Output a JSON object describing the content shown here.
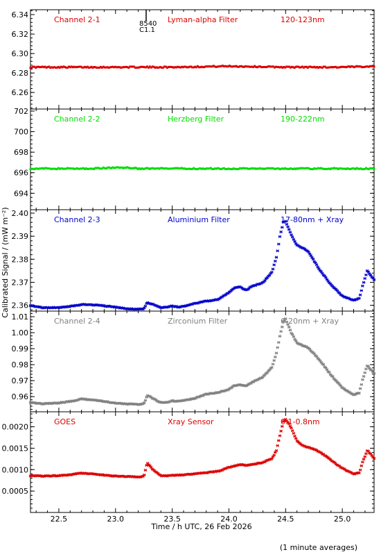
{
  "figure": {
    "ylabel": "Calibrated Signal / (mW m⁻²)",
    "xlabel": "Time / h UTC, 26 Feb 2026",
    "footnote": "(1 minute averages)",
    "annotation": {
      "x": 23.27,
      "lines": [
        "8540",
        "C1.1"
      ]
    },
    "xlim": [
      22.25,
      25.28
    ],
    "xticks": [
      "22.5",
      "23.0",
      "23.5",
      "24.0",
      "24.5",
      "25.0"
    ],
    "colors": {
      "channel_2_1": "#dd0000",
      "channel_2_2": "#00dd00",
      "channel_2_3": "#0000cc",
      "channel_2_4": "#808080",
      "goes": "#dd0000"
    }
  },
  "chart_data": [
    {
      "type": "scatter",
      "labels": [
        "Channel 2-1",
        "Lyman-alpha Filter",
        "120-123nm"
      ],
      "ylim": [
        6.243,
        6.345
      ],
      "yticks": [
        "6.26",
        "6.28",
        "6.30",
        "6.32",
        "6.34"
      ],
      "series": [
        {
          "color": "#dd0000",
          "x": [
            22.25,
            23.0,
            23.5,
            24.0,
            24.5,
            25.0,
            25.28
          ],
          "y": [
            6.286,
            6.286,
            6.286,
            6.287,
            6.286,
            6.286,
            6.287
          ]
        }
      ]
    },
    {
      "type": "scatter",
      "labels": [
        "Channel 2-2",
        "Herzberg Filter",
        "190-222nm"
      ],
      "ylim": [
        692.4,
        702.2
      ],
      "yticks": [
        "694",
        "696",
        "698",
        "700",
        "702"
      ],
      "series": [
        {
          "color": "#00dd00",
          "x": [
            22.25,
            22.8,
            23.0,
            23.1,
            23.2,
            23.5,
            24.0,
            24.5,
            25.0,
            25.28
          ],
          "y": [
            696.4,
            696.4,
            696.5,
            696.5,
            696.4,
            696.4,
            696.4,
            696.4,
            696.4,
            696.4
          ]
        }
      ]
    },
    {
      "type": "scatter",
      "labels": [
        "Channel 2-3",
        "Aluminium Filter",
        "17-80nm + Xray"
      ],
      "ylim": [
        2.3575,
        2.4015
      ],
      "yticks": [
        "2.36",
        "2.37",
        "2.38",
        "2.39",
        "2.40"
      ],
      "series": [
        {
          "color": "#0000cc",
          "x": [
            22.25,
            22.35,
            22.5,
            22.6,
            22.7,
            22.8,
            22.9,
            23.0,
            23.1,
            23.2,
            23.25,
            23.28,
            23.33,
            23.4,
            23.45,
            23.5,
            23.55,
            23.6,
            23.7,
            23.8,
            23.9,
            24.0,
            24.05,
            24.1,
            24.15,
            24.2,
            24.3,
            24.38,
            24.42,
            24.45,
            24.48,
            24.5,
            24.55,
            24.6,
            24.65,
            24.7,
            24.8,
            24.9,
            25.0,
            25.1,
            25.15,
            25.18,
            25.22,
            25.28
          ],
          "y": [
            2.36,
            2.359,
            2.359,
            2.3595,
            2.3603,
            2.3602,
            2.3598,
            2.3592,
            2.3585,
            2.3583,
            2.3585,
            2.3612,
            2.3605,
            2.359,
            2.3592,
            2.3598,
            2.3593,
            2.3595,
            2.3608,
            2.3618,
            2.3625,
            2.3655,
            2.3675,
            2.368,
            2.3665,
            2.3682,
            2.3698,
            2.3745,
            2.381,
            2.39,
            2.396,
            2.3965,
            2.3905,
            2.386,
            2.385,
            2.3832,
            2.3755,
            2.369,
            2.364,
            2.3622,
            2.363,
            2.3685,
            2.3752,
            2.371
          ]
        }
      ]
    },
    {
      "type": "scatter",
      "labels": [
        "Channel 2-4",
        "Zirconium Filter",
        "6-20nm + Xray"
      ],
      "ylim": [
        0.9505,
        1.0135
      ],
      "yticks": [
        "0.96",
        "0.97",
        "0.98",
        "0.99",
        "1.00",
        "1.01"
      ],
      "series": [
        {
          "color": "#808080",
          "x": [
            22.25,
            22.35,
            22.5,
            22.6,
            22.7,
            22.8,
            22.9,
            23.0,
            23.1,
            23.2,
            23.25,
            23.28,
            23.33,
            23.4,
            23.45,
            23.5,
            23.55,
            23.6,
            23.7,
            23.8,
            23.9,
            24.0,
            24.05,
            24.1,
            24.15,
            24.2,
            24.3,
            24.38,
            24.42,
            24.45,
            24.48,
            24.5,
            24.55,
            24.6,
            24.65,
            24.7,
            24.8,
            24.9,
            25.0,
            25.1,
            25.15,
            25.18,
            25.22,
            25.28
          ],
          "y": [
            0.9565,
            0.9555,
            0.956,
            0.957,
            0.9585,
            0.958,
            0.957,
            0.956,
            0.9553,
            0.9552,
            0.9555,
            0.9608,
            0.9588,
            0.9562,
            0.9564,
            0.9574,
            0.957,
            0.9575,
            0.959,
            0.9615,
            0.9625,
            0.9645,
            0.967,
            0.9673,
            0.9665,
            0.9688,
            0.9722,
            0.9785,
            0.9875,
            0.998,
            1.007,
            1.0085,
            1.0,
            0.9935,
            0.992,
            0.9905,
            0.983,
            0.9735,
            0.9655,
            0.9612,
            0.9625,
            0.971,
            0.9795,
            0.9745
          ]
        }
      ]
    },
    {
      "type": "scatter",
      "labels": [
        "GOES",
        "Xray Sensor",
        "0.1-0.8nm"
      ],
      "ylim": [
        0.0,
        0.00235
      ],
      "yticks": [
        "0.0005",
        "0.0010",
        "0.0015",
        "0.0020"
      ],
      "series": [
        {
          "color": "#dd0000",
          "x": [
            22.25,
            22.35,
            22.5,
            22.6,
            22.7,
            22.8,
            22.9,
            23.0,
            23.1,
            23.2,
            23.25,
            23.28,
            23.33,
            23.4,
            23.45,
            23.5,
            23.55,
            23.6,
            23.7,
            23.8,
            23.9,
            24.0,
            24.05,
            24.1,
            24.15,
            24.2,
            24.3,
            24.38,
            24.42,
            24.45,
            24.48,
            24.5,
            24.55,
            24.6,
            24.65,
            24.7,
            24.8,
            24.9,
            25.0,
            25.1,
            25.15,
            25.18,
            25.22,
            25.28
          ],
          "y": [
            0.00086,
            0.00085,
            0.00086,
            0.00088,
            0.00092,
            0.0009,
            0.00087,
            0.00085,
            0.00084,
            0.00083,
            0.00084,
            0.00116,
            0.001,
            0.00086,
            0.00085,
            0.00087,
            0.00087,
            0.00088,
            0.0009,
            0.00093,
            0.00096,
            0.00105,
            0.00109,
            0.00112,
            0.0011,
            0.00112,
            0.00117,
            0.00126,
            0.00145,
            0.0018,
            0.00212,
            0.00218,
            0.00198,
            0.00167,
            0.00156,
            0.00152,
            0.00142,
            0.00122,
            0.00103,
            0.0009,
            0.00093,
            0.00118,
            0.00145,
            0.00127
          ]
        }
      ]
    }
  ]
}
